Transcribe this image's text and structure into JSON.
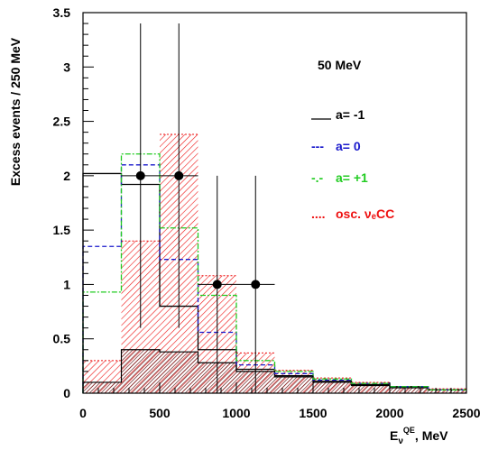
{
  "chart_data": {
    "type": "bar",
    "subtype": "histogram-with-data-points",
    "bin_edges": [
      0,
      250,
      500,
      750,
      1000,
      1250,
      1500,
      1750,
      2000,
      2250,
      2500
    ],
    "xlim": [
      0,
      2500
    ],
    "ylim": [
      0,
      3.5
    ],
    "xticks": [
      "0",
      "500",
      "1000",
      "1500",
      "2000",
      "2500"
    ],
    "yticks": [
      "0",
      "0.5",
      "1",
      "1.5",
      "2",
      "2.5",
      "3",
      "3.5"
    ],
    "ylabel": "Excess events / 250 MeV",
    "xlabel": {
      "main": "E",
      "sub": "ν",
      "sup": "QE",
      "unit": ", MeV"
    },
    "annotation": "50 MeV",
    "background": {
      "name": "dark hatched",
      "values": [
        0.1,
        0.4,
        0.38,
        0.28,
        0.2,
        0.15,
        0.1,
        0.07,
        0.05,
        0.03
      ],
      "color": "#5a1010"
    },
    "series": [
      {
        "name": "a= -1",
        "label_prefix": "",
        "color": "#000000",
        "style": "solid",
        "values": [
          2.02,
          1.92,
          0.8,
          0.4,
          0.22,
          0.16,
          0.11,
          0.08,
          0.06,
          0.03
        ]
      },
      {
        "name": "a= 0",
        "label_prefix": "---",
        "color": "#1a1acc",
        "style": "dashed",
        "values": [
          1.35,
          2.1,
          1.23,
          0.56,
          0.26,
          0.18,
          0.12,
          0.09,
          0.06,
          0.03
        ]
      },
      {
        "name": "a= +1",
        "label_prefix": "-.-",
        "color": "#22cc22",
        "style": "dashdot",
        "values": [
          0.93,
          2.2,
          1.52,
          0.9,
          0.3,
          0.2,
          0.13,
          0.09,
          0.06,
          0.03
        ]
      }
    ],
    "osc": {
      "name": "osc. νₑCC",
      "label_prefix": "....",
      "color": "#ee1111",
      "values": [
        0.3,
        1.4,
        2.38,
        1.08,
        0.37,
        0.21,
        0.14,
        0.1,
        0.06,
        0.04
      ]
    },
    "data_points": [
      {
        "x": 375,
        "y": 2.0,
        "err_lo": 1.4,
        "err_hi": 1.4,
        "xerr": 125
      },
      {
        "x": 625,
        "y": 2.0,
        "err_lo": 1.4,
        "err_hi": 1.4,
        "xerr": 125
      },
      {
        "x": 875,
        "y": 1.0,
        "err_lo": 1.0,
        "err_hi": 1.0,
        "xerr": 125
      },
      {
        "x": 1125,
        "y": 1.0,
        "err_lo": 1.0,
        "err_hi": 1.0,
        "xerr": 125
      }
    ]
  }
}
